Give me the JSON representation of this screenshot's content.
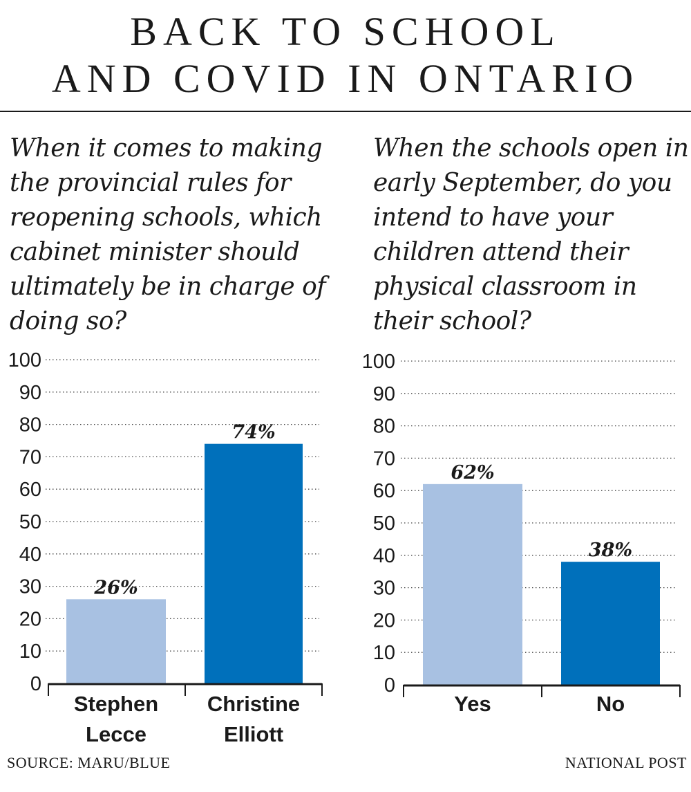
{
  "title_lines": [
    "BACK TO SCHOOL",
    "AND COVID IN ONTARIO"
  ],
  "footer": {
    "source": "SOURCE: MARU/BLUE",
    "credit": "NATIONAL POST"
  },
  "colors": {
    "light_bar": "#a8c1e2",
    "dark_bar": "#0070bb",
    "text": "#1a1a1a",
    "grid": "#444444"
  },
  "chart_data": [
    {
      "type": "bar",
      "title": "When it comes to making the provincial rules for reopening schools, which cabinet minister should ultimately be in charge of doing so?",
      "categories": [
        [
          "Stephen",
          "Lecce"
        ],
        [
          "Christine",
          "Elliott"
        ]
      ],
      "values": [
        26,
        74
      ],
      "data_labels": [
        "26%",
        "74%"
      ],
      "bar_colors": [
        "#a8c1e2",
        "#0070bb"
      ],
      "ylim": [
        0,
        100
      ],
      "yticks": [
        0,
        10,
        20,
        30,
        40,
        50,
        60,
        70,
        80,
        90,
        100
      ],
      "grid": "dotted horizontal",
      "xlabel": "",
      "ylabel": ""
    },
    {
      "type": "bar",
      "title": "When the schools open in early September, do you intend to have your children attend their physical classroom in their school?",
      "categories": [
        [
          "Yes"
        ],
        [
          "No"
        ]
      ],
      "values": [
        62,
        38
      ],
      "data_labels": [
        "62%",
        "38%"
      ],
      "bar_colors": [
        "#a8c1e2",
        "#0070bb"
      ],
      "ylim": [
        0,
        100
      ],
      "yticks": [
        0,
        10,
        20,
        30,
        40,
        50,
        60,
        70,
        80,
        90,
        100
      ],
      "grid": "dotted horizontal",
      "xlabel": "",
      "ylabel": ""
    }
  ]
}
